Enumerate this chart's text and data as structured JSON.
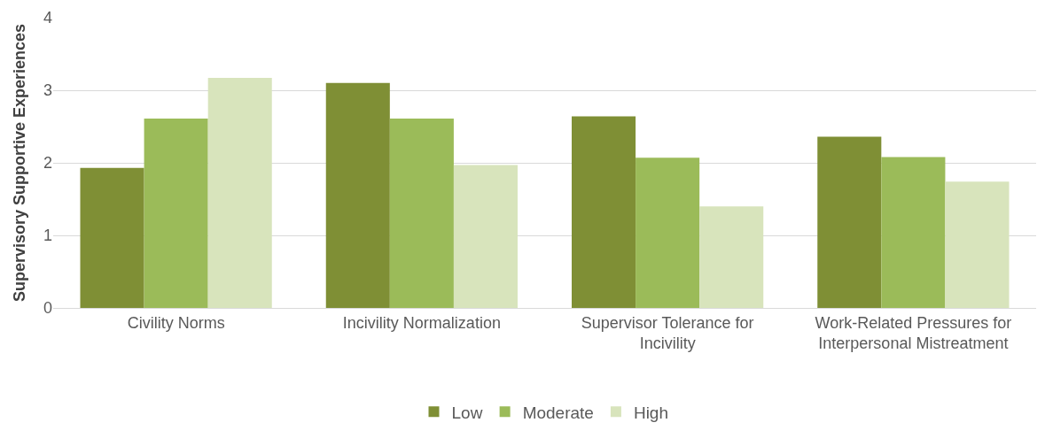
{
  "chart_data": {
    "type": "bar",
    "ylabel": "Supervisory Supportive Experiences",
    "categories": [
      "Civility Norms",
      "Incivility Normalization",
      "Supervisor Tolerance for Incivility",
      "Work-Related Pressures for Interpersonal Mistreatment"
    ],
    "series": [
      {
        "name": "Low",
        "color": "#7f8f35",
        "values": [
          1.93,
          3.1,
          2.64,
          2.36
        ]
      },
      {
        "name": "Moderate",
        "color": "#9bbb59",
        "values": [
          2.61,
          2.61,
          2.07,
          2.08
        ]
      },
      {
        "name": "High",
        "color": "#d8e4bc",
        "values": [
          3.17,
          1.97,
          1.4,
          1.74
        ]
      }
    ],
    "ylim": [
      0,
      4
    ],
    "yticks": [
      0,
      1,
      2,
      3,
      4
    ],
    "grid": "y",
    "legend": "bottom"
  }
}
